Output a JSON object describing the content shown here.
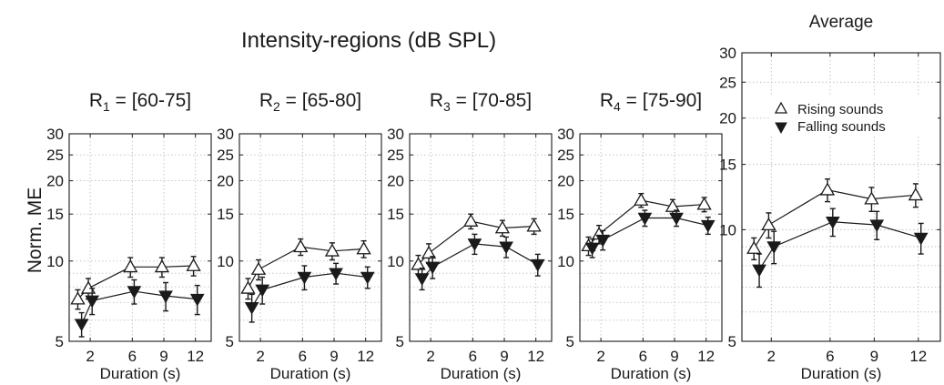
{
  "figure_title": "Intensity-regions (dB SPL)",
  "ylabel": "Norm. ME",
  "legend": {
    "rising": "Rising sounds",
    "falling": "Falling sounds",
    "placement": "top-right"
  },
  "chart_data": [
    {
      "type": "line",
      "title_main": "R",
      "title_sub": "1",
      "title_rest": " = [60-75]",
      "xlabel": "Duration (s)",
      "x": [
        1,
        2,
        6,
        9,
        12
      ],
      "xticks": [
        2,
        6,
        9,
        12
      ],
      "xlim": [
        0,
        13.5
      ],
      "yscale": "log",
      "ylim": [
        5,
        30
      ],
      "yticks": [
        5,
        10,
        15,
        20,
        25,
        30
      ],
      "grid": true,
      "series": [
        {
          "key": "rising",
          "values": [
            7.2,
            7.9,
            9.5,
            9.5,
            9.6
          ],
          "err": [
            0.6,
            0.7,
            0.8,
            0.8,
            0.8
          ]
        },
        {
          "key": "falling",
          "values": [
            5.8,
            7.1,
            7.7,
            7.4,
            7.2
          ],
          "err": [
            0.6,
            0.8,
            0.8,
            0.9,
            0.9
          ]
        }
      ]
    },
    {
      "type": "line",
      "title_main": "R",
      "title_sub": "2",
      "title_rest": " = [65-80]",
      "xlabel": "Duration (s)",
      "x": [
        1,
        2,
        6,
        9,
        12
      ],
      "xticks": [
        2,
        6,
        9,
        12
      ],
      "xlim": [
        0,
        13.5
      ],
      "yscale": "log",
      "ylim": [
        5,
        30
      ],
      "yticks": [
        5,
        10,
        15,
        20,
        25,
        30
      ],
      "grid": true,
      "series": [
        {
          "key": "rising",
          "values": [
            7.9,
            9.3,
            11.3,
            10.9,
            11.1
          ],
          "err": [
            0.7,
            0.8,
            0.8,
            0.8,
            0.8
          ]
        },
        {
          "key": "falling",
          "values": [
            6.7,
            7.8,
            8.7,
            9.0,
            8.7
          ],
          "err": [
            0.8,
            0.9,
            0.9,
            0.8,
            0.8
          ]
        }
      ]
    },
    {
      "type": "line",
      "title_main": "R",
      "title_sub": "3",
      "title_rest": " = [70-85]",
      "xlabel": "Duration (s)",
      "x": [
        1,
        2,
        6,
        9,
        12
      ],
      "xticks": [
        2,
        6,
        9,
        12
      ],
      "xlim": [
        0,
        13.5
      ],
      "yscale": "log",
      "ylim": [
        5,
        30
      ],
      "yticks": [
        5,
        10,
        15,
        20,
        25,
        30
      ],
      "grid": true,
      "series": [
        {
          "key": "rising",
          "values": [
            9.7,
            10.7,
            14.1,
            13.3,
            13.5
          ],
          "err": [
            0.8,
            0.9,
            0.9,
            0.9,
            0.9
          ]
        },
        {
          "key": "falling",
          "values": [
            8.6,
            9.5,
            11.6,
            11.3,
            9.7
          ],
          "err": [
            0.8,
            0.9,
            1.0,
            1.0,
            0.9
          ]
        }
      ]
    },
    {
      "type": "line",
      "title_main": "R",
      "title_sub": "4",
      "title_rest": " = [75-90]",
      "xlabel": "Duration (s)",
      "x": [
        1,
        2,
        6,
        9,
        12
      ],
      "xticks": [
        2,
        6,
        9,
        12
      ],
      "xlim": [
        0,
        13.5
      ],
      "yscale": "log",
      "ylim": [
        5,
        30
      ],
      "yticks": [
        5,
        10,
        15,
        20,
        25,
        30
      ],
      "grid": true,
      "series": [
        {
          "key": "rising",
          "values": [
            11.4,
            12.6,
            16.9,
            16.0,
            16.3
          ],
          "err": [
            0.9,
            1.0,
            1.0,
            1.0,
            1.0
          ]
        },
        {
          "key": "falling",
          "values": [
            11.2,
            12.0,
            14.5,
            14.5,
            13.6
          ],
          "err": [
            0.9,
            1.0,
            1.0,
            1.0,
            1.0
          ]
        }
      ]
    },
    {
      "type": "line",
      "title": "Average",
      "xlabel": "Duration (s)",
      "x": [
        1,
        2,
        6,
        9,
        12
      ],
      "xticks": [
        2,
        6,
        9,
        12
      ],
      "xlim": [
        0,
        13.5
      ],
      "yscale": "log",
      "ylim": [
        5,
        30
      ],
      "yticks": [
        5,
        10,
        15,
        20,
        25,
        30
      ],
      "grid": true,
      "series": [
        {
          "key": "rising",
          "values": [
            8.9,
            10.3,
            12.8,
            12.1,
            12.4
          ],
          "err": [
            0.6,
            0.8,
            0.9,
            0.9,
            0.9
          ]
        },
        {
          "key": "falling",
          "values": [
            7.8,
            9.0,
            10.5,
            10.3,
            9.5
          ],
          "err": [
            0.8,
            0.9,
            0.9,
            0.9,
            0.9
          ]
        }
      ]
    }
  ]
}
